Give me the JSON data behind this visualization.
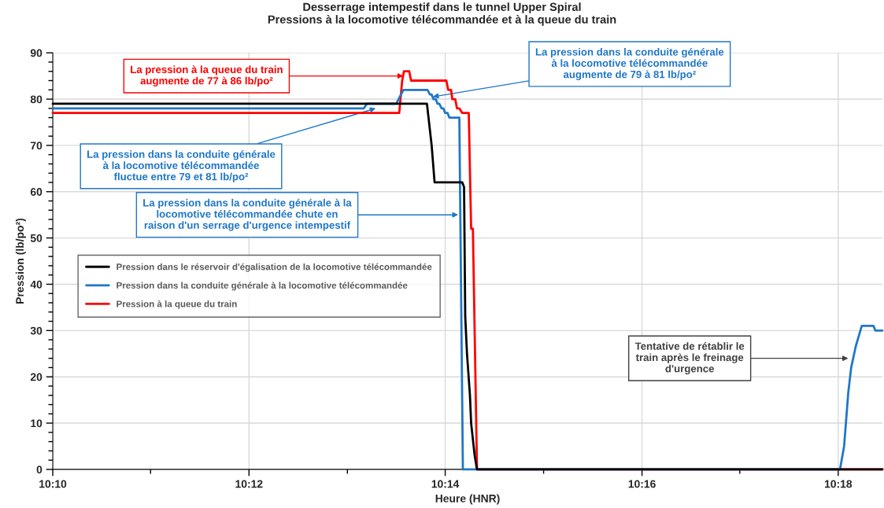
{
  "chart_data": {
    "type": "line",
    "title": "Desserrage intempestif dans le tunnel Upper Spiral\nPressions à la locomotive télécommandée et à la queue du train",
    "xlabel": "Heure (HNR)",
    "ylabel": "Pression (lb/po²)",
    "series": [
      {
        "name": "Pression dans le réservoir d'égalisation de la locomotive télécommandée",
        "color": "#000000",
        "x": [
          10.1667,
          10.2302,
          10.231,
          10.2315,
          10.2362,
          10.2365,
          10.2367,
          10.237,
          10.2375,
          10.2377,
          10.2383,
          10.2387,
          10.3075
        ],
        "values": [
          79,
          79,
          70,
          62,
          62,
          61,
          33,
          25,
          16,
          10,
          3,
          0,
          0
        ]
      },
      {
        "name": "Pression dans la conduite générale à la locomotive télécommandée",
        "color": "#1f77c8",
        "x": [
          10.1667,
          10.2195,
          10.22,
          10.225,
          10.2262,
          10.2303,
          10.2307,
          10.231,
          10.2313,
          10.2317,
          10.232,
          10.2323,
          10.2327,
          10.233,
          10.2333,
          10.2337,
          10.234,
          10.2357,
          10.2363,
          10.3003,
          10.301,
          10.3017,
          10.3022,
          10.303,
          10.3033,
          10.304,
          10.306,
          10.3063,
          10.3075
        ],
        "values": [
          78,
          78,
          79,
          79,
          82,
          82,
          81,
          81,
          80,
          80,
          79,
          79,
          78,
          78,
          77,
          77,
          76,
          76,
          0,
          0,
          5,
          16.5,
          22,
          26.7,
          28,
          31,
          31,
          30,
          30
        ]
      },
      {
        "name": "Pression à la queue du train",
        "color": "#ff0000",
        "x": [
          10.1667,
          10.2255,
          10.226,
          10.2263,
          10.2272,
          10.2275,
          10.2335,
          10.2338,
          10.2343,
          10.2345,
          10.235,
          10.2353,
          10.2357,
          10.2362,
          10.2373,
          10.2377,
          10.238,
          10.2387,
          10.3075
        ],
        "values": [
          77,
          77,
          84,
          86,
          86,
          84,
          84,
          82,
          82,
          80,
          80,
          78,
          78,
          77,
          77,
          52,
          52,
          0,
          0
        ]
      }
    ],
    "xlim": [
      10.1667,
      10.3075
    ],
    "xticks": [
      {
        "value": 10.1667,
        "label": "10:10"
      },
      {
        "value": 10.1833,
        "label": null
      },
      {
        "value": 10.2,
        "label": "10:12"
      },
      {
        "value": 10.2167,
        "label": null
      },
      {
        "value": 10.2333,
        "label": "10:14"
      },
      {
        "value": 10.25,
        "label": null
      },
      {
        "value": 10.2667,
        "label": "10:16"
      },
      {
        "value": 10.2833,
        "label": null
      },
      {
        "value": 10.3,
        "label": "10:18"
      }
    ],
    "ylim": [
      0,
      90
    ],
    "yticks": [
      0,
      {
        "value": 2,
        "label": null
      },
      {
        "value": 4,
        "label": null
      },
      {
        "value": 6,
        "label": null
      },
      {
        "value": 8,
        "label": null
      },
      10,
      {
        "value": 12,
        "label": null
      },
      {
        "value": 14,
        "label": null
      },
      {
        "value": 16,
        "label": null
      },
      {
        "value": 18,
        "label": null
      },
      20,
      {
        "value": 22,
        "label": null
      },
      {
        "value": 24,
        "label": null
      },
      {
        "value": 26,
        "label": null
      },
      {
        "value": 28,
        "label": null
      },
      30,
      {
        "value": 32,
        "label": null
      },
      {
        "value": 34,
        "label": null
      },
      {
        "value": 36,
        "label": null
      },
      {
        "value": 38,
        "label": null
      },
      40,
      {
        "value": 42,
        "label": null
      },
      {
        "value": 44,
        "label": null
      },
      {
        "value": 46,
        "label": null
      },
      {
        "value": 48,
        "label": null
      },
      50,
      {
        "value": 52,
        "label": null
      },
      {
        "value": 54,
        "label": null
      },
      {
        "value": 56,
        "label": null
      },
      {
        "value": 58,
        "label": null
      },
      60,
      {
        "value": 62,
        "label": null
      },
      {
        "value": 64,
        "label": null
      },
      {
        "value": 66,
        "label": null
      },
      {
        "value": 68,
        "label": null
      },
      70,
      {
        "value": 72,
        "label": null
      },
      {
        "value": 74,
        "label": null
      },
      {
        "value": 76,
        "label": null
      },
      {
        "value": 78,
        "label": null
      },
      80,
      {
        "value": 82,
        "label": null
      },
      {
        "value": 84,
        "label": null
      },
      {
        "value": 86,
        "label": null
      },
      {
        "value": 88,
        "label": null
      },
      90
    ],
    "annotations": [
      {
        "text": "La pression à la queue du train\naugmente de 77 à 86 lb/po²",
        "x": 10.2262,
        "y": 85
      },
      {
        "text": "La pression dans la conduite générale\nà la locomotive télécommandée\naugmente de 79 à 81 lb/po²",
        "x": 10.2312,
        "y": 80.5
      },
      {
        "text": "La pression dans la conduite générale\nà la locomotive télécommandée\nfluctue entre 79 et 81 lb/po²",
        "x": 10.2215,
        "y": 78
      },
      {
        "text": "La pression dans la conduite générale à la\nlocomotive télécommandée chute en\nraison d'un serrage d'urgence intempestif",
        "x": 10.2355,
        "y": 55
      },
      {
        "text": "Tentative de rétablir le\ntrain après le freinage\nd'urgence",
        "x": 10.3017,
        "y": 24
      }
    ],
    "grid": true,
    "legend": "left",
    "marker": "none",
    "line_style": "solid"
  }
}
